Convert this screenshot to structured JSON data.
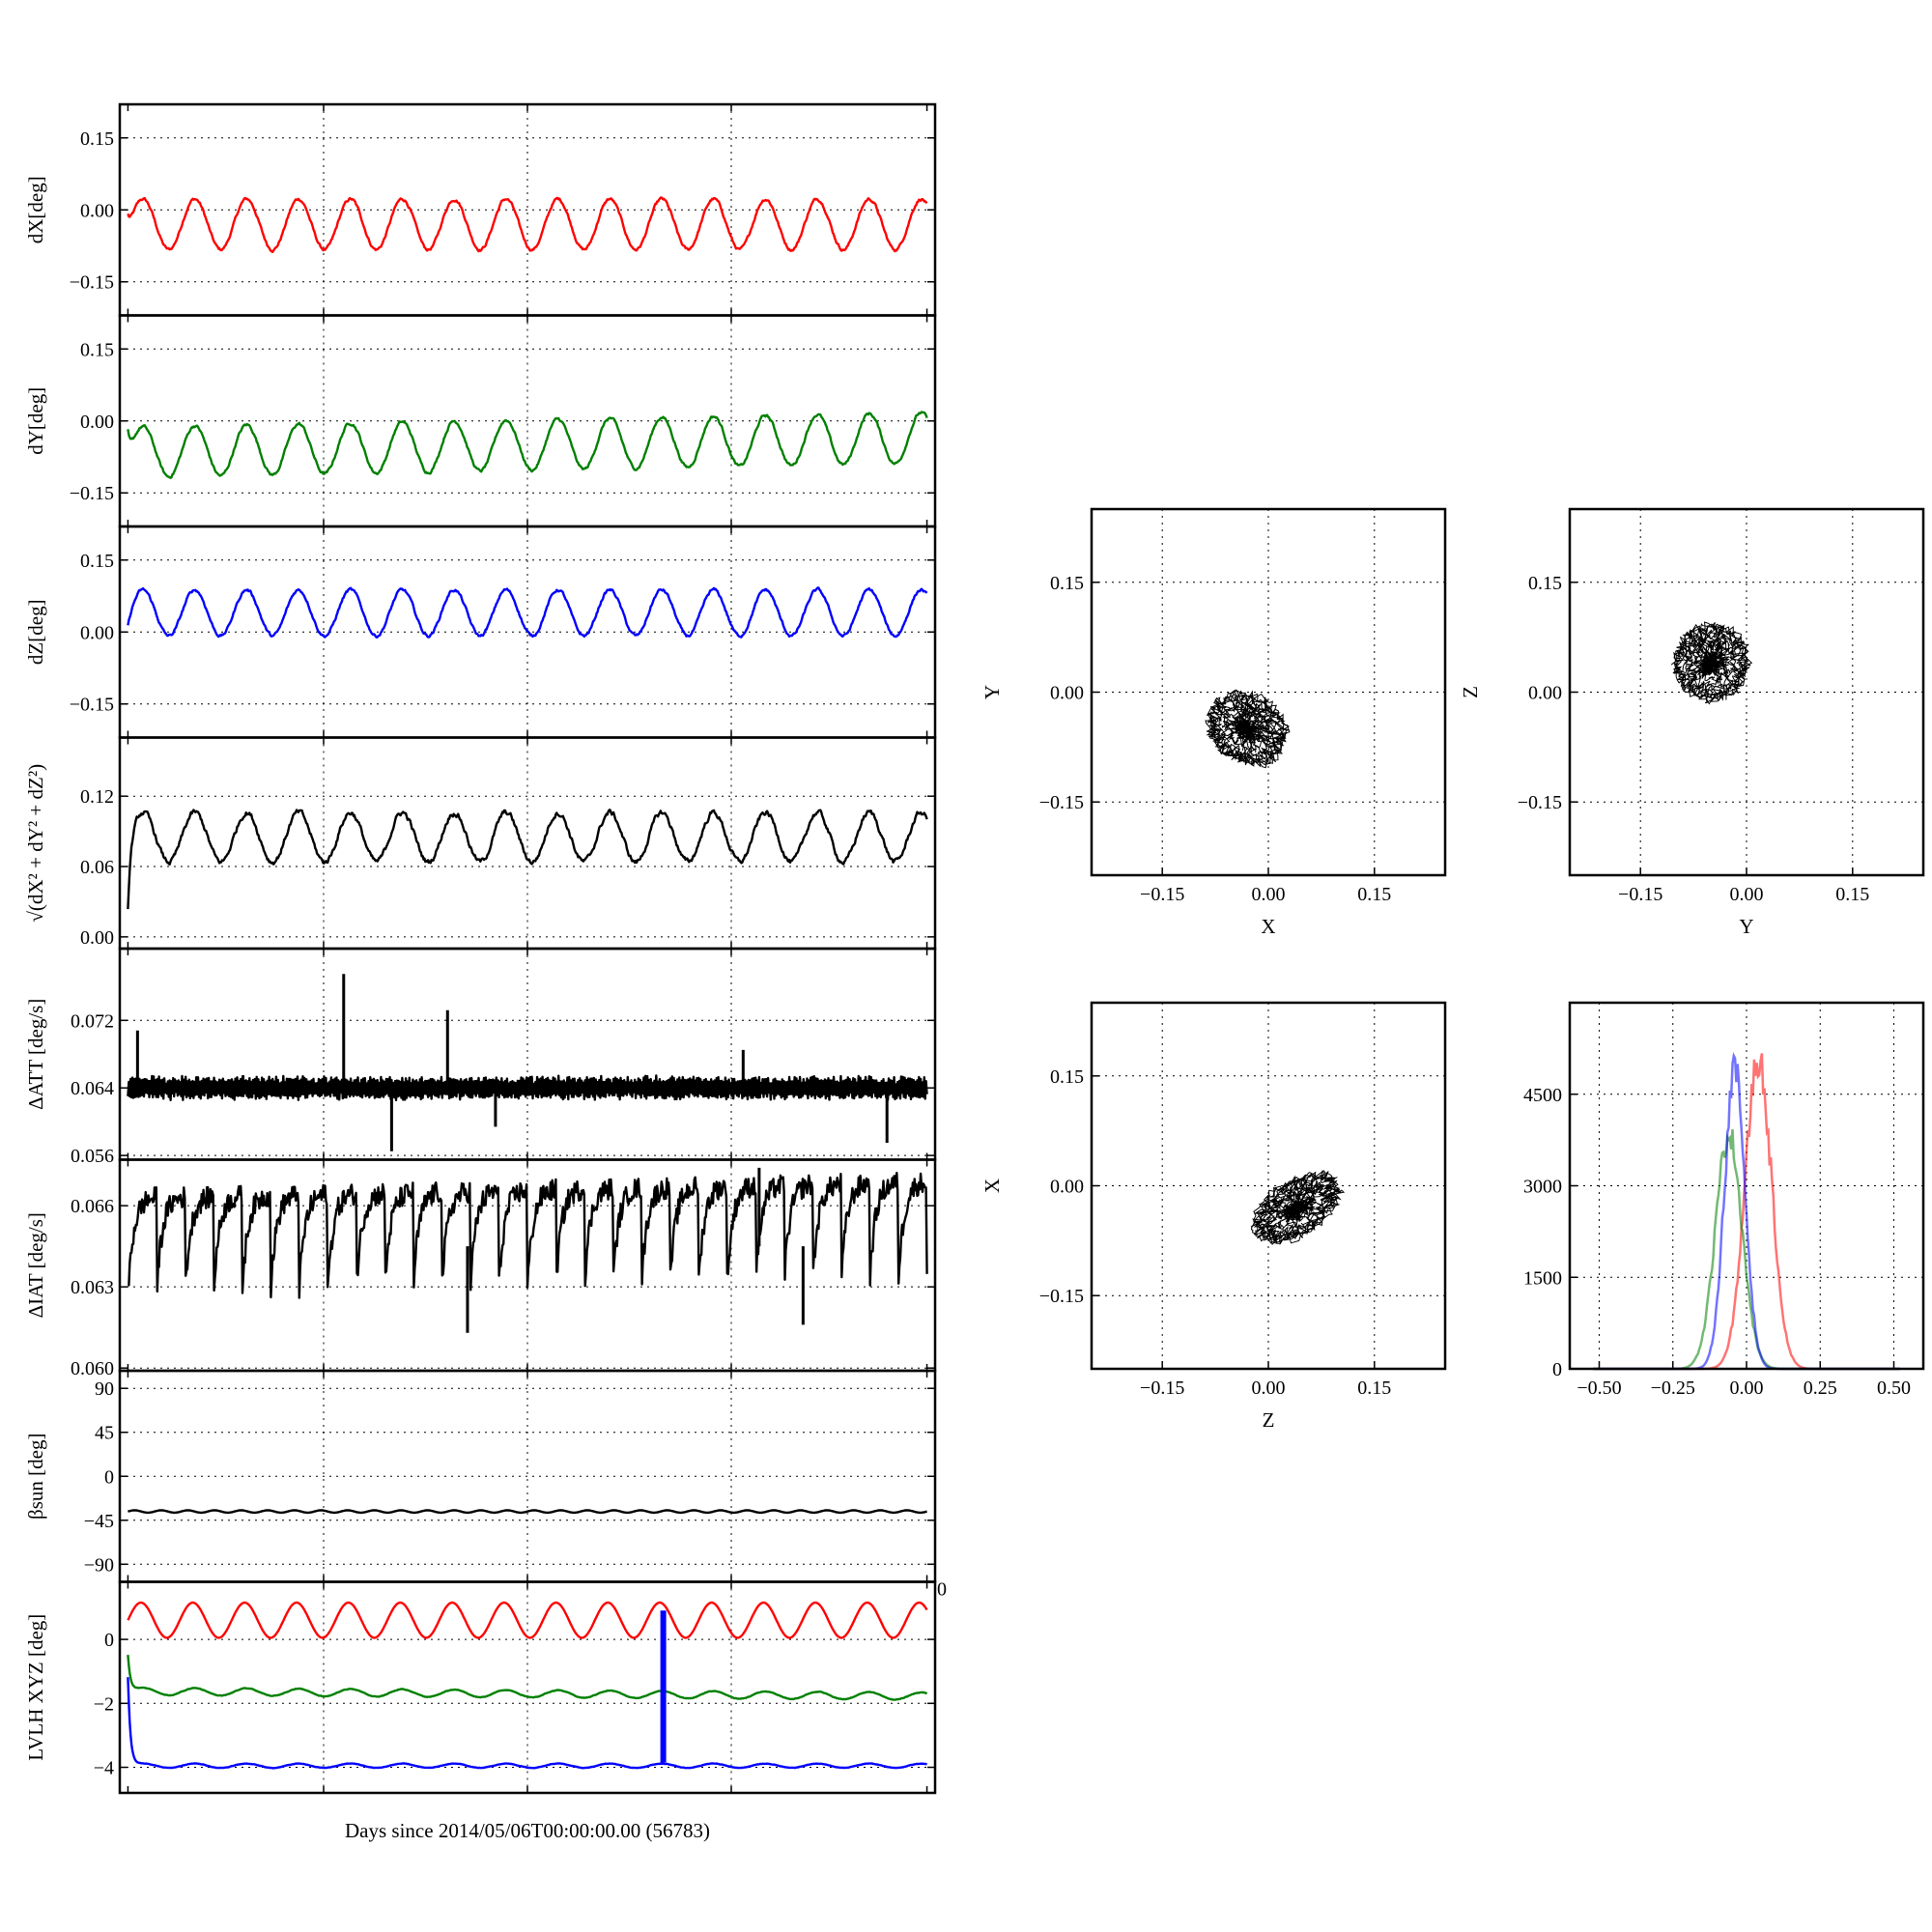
{
  "chart_data": [
    {
      "type": "line",
      "ylabel": "dX[deg]",
      "yticks": [
        -0.15,
        0.0,
        0.15
      ],
      "tick_format": "2",
      "ylim": [
        -0.22,
        0.22
      ],
      "grid": true,
      "series": [
        {
          "color": "#ff0000",
          "pattern": "wave",
          "center": -0.03,
          "amp": 0.055,
          "cycles": 15.4,
          "noise": 0.008,
          "drift": 0.0
        }
      ]
    },
    {
      "type": "line",
      "ylabel": "dY[deg]",
      "yticks": [
        -0.15,
        0.0,
        0.15
      ],
      "tick_format": "2",
      "ylim": [
        -0.22,
        0.22
      ],
      "grid": true,
      "series": [
        {
          "color": "#008000",
          "pattern": "wave",
          "center": -0.05,
          "amp": 0.055,
          "cycles": 15.4,
          "noise": 0.008,
          "drift": 0.03
        }
      ]
    },
    {
      "type": "line",
      "ylabel": "dZ[deg]",
      "yticks": [
        -0.15,
        0.0,
        0.15
      ],
      "tick_format": "2",
      "ylim": [
        -0.22,
        0.22
      ],
      "grid": true,
      "series": [
        {
          "color": "#0000ff",
          "pattern": "wave",
          "center": 0.04,
          "amp": 0.05,
          "cycles": 15.4,
          "noise": 0.008,
          "drift": 0.0
        }
      ]
    },
    {
      "type": "line",
      "ylabel": "√(dX² + dY² + dZ²)",
      "yticks": [
        0.0,
        0.06,
        0.12
      ],
      "tick_format": "2",
      "ylim": [
        -0.01,
        0.17
      ],
      "grid": true,
      "series": [
        {
          "color": "#000000",
          "pattern": "wave",
          "center": 0.085,
          "amp": 0.022,
          "cycles": 15.4,
          "noise": 0.006,
          "drift": 0.0
        }
      ]
    },
    {
      "type": "line",
      "ylabel": "ΔATT [deg/s]",
      "yticks": [
        0.056,
        0.064,
        0.072
      ],
      "tick_format": "3",
      "ylim": [
        0.0555,
        0.0805
      ],
      "grid": true,
      "series": [
        {
          "color": "#000000",
          "pattern": "band",
          "center": 0.064,
          "amp": 0.0012,
          "cycles": 80,
          "noise": 0.0006,
          "drift": 0.0,
          "spikes": [
            [
              0.012,
              0.0708
            ],
            [
              0.144,
              0.0655
            ],
            [
              0.27,
              0.0775
            ],
            [
              0.4,
              0.0732
            ],
            [
              0.77,
              0.0685
            ],
            [
              0.33,
              0.0565
            ],
            [
              0.46,
              0.0594
            ],
            [
              0.95,
              0.0575
            ]
          ]
        }
      ]
    },
    {
      "type": "line",
      "ylabel": "ΔIAT [deg/s]",
      "yticks": [
        0.06,
        0.063,
        0.066
      ],
      "tick_format": "3",
      "ylim": [
        0.0599,
        0.0677
      ],
      "grid": true,
      "series": [
        {
          "color": "#000000",
          "pattern": "sawtooth",
          "center": 0.0645,
          "amp": 0.0015,
          "cycles": 28,
          "noise": 0.0004,
          "drift": 0.0006,
          "spikes": [
            [
              0.425,
              0.0613
            ],
            [
              0.845,
              0.0616
            ],
            [
              0.79,
              0.0674
            ]
          ]
        }
      ]
    },
    {
      "type": "line",
      "ylabel": "βsun [deg]",
      "yticks": [
        -90,
        -45,
        0,
        45,
        90
      ],
      "tick_format": "0",
      "ylim": [
        -108,
        108
      ],
      "grid": true,
      "series": [
        {
          "color": "#000000",
          "pattern": "wave",
          "center": -36,
          "amp": 1.2,
          "cycles": 30,
          "noise": 0.0,
          "drift": 0.0
        }
      ]
    },
    {
      "type": "line",
      "ylabel": "LVLH XYZ [deg]",
      "yticks": [
        -4,
        -2,
        0
      ],
      "tick_format": "0",
      "ylim": [
        -4.8,
        1.8
      ],
      "grid": true,
      "xlabel": "Days since 2014/05/06T00:00:00.00 (56783)",
      "xtick_overflow": "0",
      "series": [
        {
          "color": "#ff0000",
          "pattern": "wave",
          "center": 0.6,
          "amp": 0.55,
          "cycles": 15.4,
          "noise": 0.0,
          "drift": 0.0
        },
        {
          "color": "#008000",
          "pattern": "wave",
          "center": -1.7,
          "amp": 0.12,
          "cycles": 15.4,
          "noise": 0.02,
          "drift": -0.15
        },
        {
          "color": "#0000ff",
          "pattern": "wave",
          "center": -3.95,
          "amp": 0.07,
          "cycles": 15.4,
          "noise": 0.015,
          "drift": 0.0
        }
      ],
      "vbar": {
        "x": 0.67,
        "from": -3.85,
        "to": 0.9,
        "color": "#0000ff"
      }
    },
    {
      "type": "scatter",
      "xlabel": "X",
      "ylabel": "Y",
      "xticks": [
        -0.15,
        0.0,
        0.15
      ],
      "yticks": [
        -0.15,
        0.0,
        0.15
      ],
      "xlim": [
        -0.25,
        0.25
      ],
      "ylim": [
        -0.25,
        0.25
      ],
      "grid": true,
      "cloud": {
        "cx": -0.03,
        "cy": -0.05,
        "rx": 0.055,
        "ry": 0.045,
        "tilt": -0.5
      }
    },
    {
      "type": "scatter",
      "xlabel": "Y",
      "ylabel": "Z",
      "xticks": [
        -0.15,
        0.0,
        0.15
      ],
      "yticks": [
        -0.15,
        0.0,
        0.15
      ],
      "xlim": [
        -0.25,
        0.25
      ],
      "ylim": [
        -0.25,
        0.25
      ],
      "grid": true,
      "cloud": {
        "cx": -0.05,
        "cy": 0.04,
        "rx": 0.05,
        "ry": 0.05,
        "tilt": 0.6
      }
    },
    {
      "type": "scatter",
      "xlabel": "Z",
      "ylabel": "X",
      "xticks": [
        -0.15,
        0.0,
        0.15
      ],
      "yticks": [
        -0.15,
        0.0,
        0.15
      ],
      "xlim": [
        -0.25,
        0.25
      ],
      "ylim": [
        -0.25,
        0.25
      ],
      "grid": true,
      "cloud": {
        "cx": 0.04,
        "cy": -0.03,
        "rx": 0.065,
        "ry": 0.035,
        "tilt": 0.55
      }
    },
    {
      "type": "histogram",
      "xticks": [
        -0.5,
        -0.25,
        0.0,
        0.25,
        0.5
      ],
      "yticks": [
        0,
        1500,
        3000,
        4500
      ],
      "xlim": [
        -0.6,
        0.6
      ],
      "ylim": [
        0,
        6000
      ],
      "grid": true,
      "series": [
        {
          "color": "#ff0000",
          "mean": 0.04,
          "sd": 0.045,
          "peak": 5400
        },
        {
          "color": "#008000",
          "mean": -0.06,
          "sd": 0.045,
          "peak": 4100
        },
        {
          "color": "#0000ff",
          "mean": -0.04,
          "sd": 0.035,
          "peak": 5200
        }
      ]
    }
  ]
}
